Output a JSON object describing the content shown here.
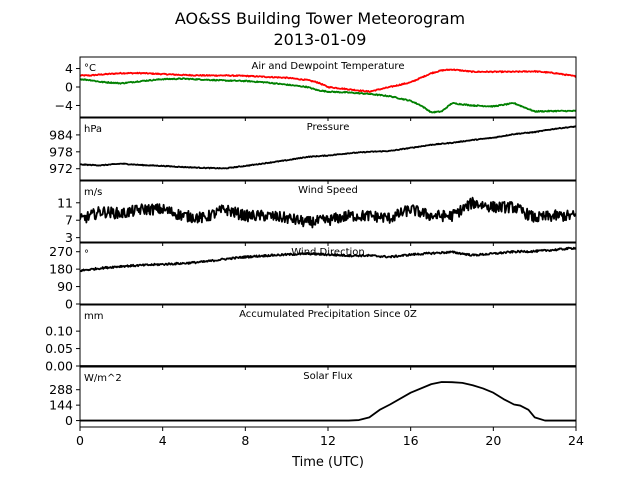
{
  "figure": {
    "title_line1": "AO&SS Building Tower Meteorogram",
    "title_line2": "2013-01-09",
    "xlabel": "Time (UTC)",
    "xticks": [
      0,
      4,
      8,
      12,
      16,
      20,
      24
    ],
    "xlim": [
      0,
      24
    ]
  },
  "chart_data": [
    {
      "type": "line",
      "title": "Air and Dewpoint Temperature",
      "unit": "°C",
      "ylim": [
        -6.5,
        6.5
      ],
      "yticks": [
        4,
        0,
        -4
      ],
      "series": [
        {
          "color": "#ff0000",
          "x": [
            0,
            0.5,
            1,
            2,
            3,
            4,
            5,
            6,
            7,
            8,
            9,
            10,
            11,
            11.5,
            12,
            13,
            14,
            15,
            16,
            16.5,
            17,
            17.5,
            18,
            19,
            20,
            21,
            22,
            23,
            24
          ],
          "y": [
            2.5,
            2.5,
            2.7,
            3,
            3,
            2.8,
            2.6,
            2.5,
            2.5,
            2.4,
            2.2,
            2,
            1.5,
            1,
            0,
            -0.5,
            -1,
            0,
            1,
            2,
            3,
            3.6,
            3.8,
            3.3,
            3.3,
            3.3,
            3.4,
            3,
            2.3
          ]
        },
        {
          "color": "#008000",
          "x": [
            0,
            0.5,
            1,
            2,
            3,
            4,
            5,
            6,
            7,
            8,
            9,
            10,
            11,
            11.5,
            12,
            13,
            14,
            15,
            16,
            16.5,
            17,
            17.5,
            18,
            19,
            20,
            21,
            22,
            23,
            24
          ],
          "y": [
            1.7,
            1.5,
            1.1,
            0.8,
            1.3,
            1.7,
            1.8,
            1.6,
            1.4,
            1.3,
            1,
            0.5,
            0,
            -0.7,
            -1,
            -1.2,
            -1.5,
            -2,
            -3,
            -4,
            -5.5,
            -5.3,
            -3.5,
            -4,
            -4.2,
            -3.5,
            -5.3,
            -5.2,
            -5.2
          ]
        }
      ]
    },
    {
      "type": "line",
      "title": "Pressure",
      "unit": "hPa",
      "ylim": [
        968,
        990
      ],
      "yticks": [
        984,
        978,
        972
      ],
      "series": [
        {
          "color": "#000000",
          "x": [
            0,
            1,
            2,
            3,
            4,
            5,
            6,
            7,
            8,
            9,
            10,
            11,
            12,
            13,
            14,
            15,
            16,
            17,
            18,
            19,
            20,
            21,
            22,
            23,
            24
          ],
          "y": [
            973.5,
            973.2,
            973.8,
            973.3,
            973,
            972.6,
            972.3,
            972.1,
            973,
            974,
            975,
            976.2,
            976.7,
            977.5,
            978,
            978.3,
            979.4,
            980.5,
            981.2,
            982.2,
            983,
            984.3,
            985,
            986.2,
            987
          ]
        }
      ]
    },
    {
      "type": "line",
      "title": "Wind Speed",
      "unit": "m/s",
      "ylim": [
        2,
        16
      ],
      "yticks": [
        11,
        7,
        3
      ],
      "series": [
        {
          "color": "#000000",
          "x": [
            0,
            1,
            2,
            3,
            4,
            5,
            6,
            7,
            8,
            9,
            10,
            11,
            12,
            13,
            14,
            15,
            16,
            17,
            18,
            19,
            20,
            21,
            22,
            23,
            24
          ],
          "y": [
            7,
            9,
            8.5,
            9.5,
            9.5,
            8,
            7.5,
            9.5,
            8,
            8,
            7.5,
            6.5,
            7,
            8,
            8,
            7.5,
            9.5,
            8,
            8,
            11,
            10,
            10,
            7.5,
            8,
            8
          ]
        }
      ]
    },
    {
      "type": "line",
      "title": "Wind Direction",
      "unit": "°",
      "ylim": [
        0,
        315
      ],
      "yticks": [
        270,
        180,
        90,
        0
      ],
      "series": [
        {
          "color": "#000000",
          "x": [
            0,
            1,
            2,
            3,
            4,
            5,
            6,
            7,
            8,
            9,
            10,
            11,
            12,
            13,
            14,
            15,
            16,
            17,
            18,
            19,
            20,
            21,
            22,
            23,
            24
          ],
          "y": [
            172,
            185,
            195,
            200,
            205,
            210,
            218,
            232,
            243,
            250,
            255,
            260,
            255,
            250,
            250,
            243,
            255,
            262,
            268,
            252,
            260,
            270,
            272,
            280,
            290
          ]
        }
      ]
    },
    {
      "type": "line",
      "title": "Accumulated Precipitation Since 0Z",
      "unit": "mm",
      "ylim": [
        0,
        0.175
      ],
      "yticks": [
        0.1,
        0.05,
        0.0
      ],
      "series": [
        {
          "color": "#000000",
          "x": [
            0,
            24
          ],
          "y": [
            0,
            0
          ]
        }
      ]
    },
    {
      "type": "line",
      "title": "Solar Flux",
      "unit": "W/m^2",
      "ylim": [
        -60,
        500
      ],
      "yticks": [
        288,
        144,
        0
      ],
      "series": [
        {
          "color": "#000000",
          "x": [
            0,
            13,
            13.5,
            14,
            14.5,
            15,
            16,
            17,
            17.5,
            18,
            18.5,
            19,
            19.5,
            20,
            20.5,
            21,
            21.3,
            21.7,
            22,
            22.5,
            24
          ],
          "y": [
            0,
            0,
            5,
            30,
            100,
            150,
            260,
            340,
            360,
            358,
            352,
            330,
            300,
            260,
            200,
            150,
            140,
            100,
            30,
            0,
            0
          ]
        }
      ]
    }
  ]
}
